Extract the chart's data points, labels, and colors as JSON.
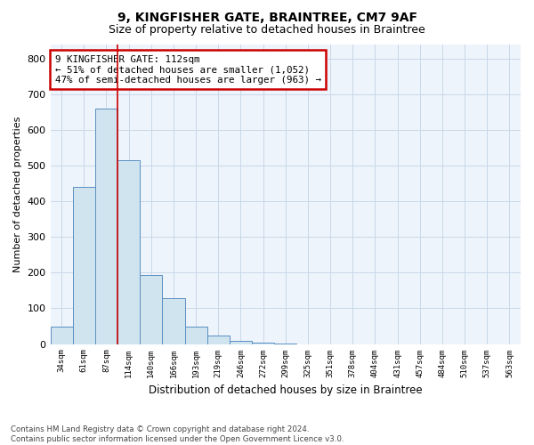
{
  "title": "9, KINGFISHER GATE, BRAINTREE, CM7 9AF",
  "subtitle": "Size of property relative to detached houses in Braintree",
  "xlabel": "Distribution of detached houses by size in Braintree",
  "ylabel": "Number of detached properties",
  "bar_labels": [
    "34sqm",
    "61sqm",
    "87sqm",
    "114sqm",
    "140sqm",
    "166sqm",
    "193sqm",
    "219sqm",
    "246sqm",
    "272sqm",
    "299sqm",
    "325sqm",
    "351sqm",
    "378sqm",
    "404sqm",
    "431sqm",
    "457sqm",
    "484sqm",
    "510sqm",
    "537sqm",
    "563sqm"
  ],
  "bar_values": [
    50,
    440,
    660,
    515,
    193,
    128,
    50,
    25,
    10,
    5,
    1,
    0,
    0,
    0,
    0,
    0,
    0,
    0,
    0,
    0,
    0
  ],
  "bar_color": "#d0e4f0",
  "bar_edge_color": "#5a8fc0",
  "property_line_x": 2.5,
  "property_line_color": "#cc0000",
  "annotation_line1": "9 KINGFISHER GATE: 112sqm",
  "annotation_line2": "← 51% of detached houses are smaller (1,052)",
  "annotation_line3": "47% of semi-detached houses are larger (963) →",
  "annotation_box_color": "#cc0000",
  "ylim": [
    0,
    840
  ],
  "yticks": [
    0,
    100,
    200,
    300,
    400,
    500,
    600,
    700,
    800
  ],
  "footer_text": "Contains HM Land Registry data © Crown copyright and database right 2024.\nContains public sector information licensed under the Open Government Licence v3.0.",
  "grid_color": "#c8d8e8",
  "background_color": "#eef4fb",
  "title_fontsize": 10,
  "subtitle_fontsize": 9
}
